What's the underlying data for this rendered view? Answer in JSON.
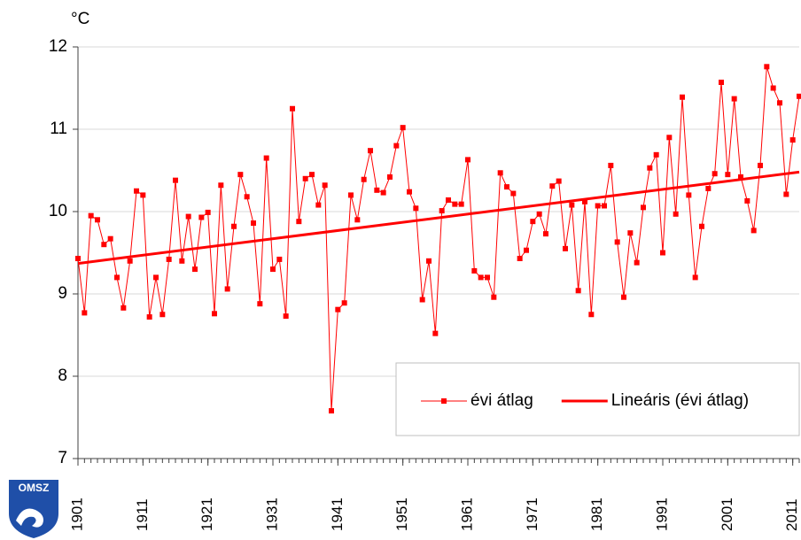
{
  "chart_data": {
    "type": "line",
    "y_label": "°C",
    "x": [
      1901,
      1902,
      1903,
      1904,
      1905,
      1906,
      1907,
      1908,
      1909,
      1910,
      1911,
      1912,
      1913,
      1914,
      1915,
      1916,
      1917,
      1918,
      1919,
      1920,
      1921,
      1922,
      1923,
      1924,
      1925,
      1926,
      1927,
      1928,
      1929,
      1930,
      1931,
      1932,
      1933,
      1934,
      1935,
      1936,
      1937,
      1938,
      1939,
      1940,
      1941,
      1942,
      1943,
      1944,
      1945,
      1946,
      1947,
      1948,
      1949,
      1950,
      1951,
      1952,
      1953,
      1954,
      1955,
      1956,
      1957,
      1958,
      1959,
      1960,
      1961,
      1962,
      1963,
      1964,
      1965,
      1966,
      1967,
      1968,
      1969,
      1970,
      1971,
      1972,
      1973,
      1974,
      1975,
      1976,
      1977,
      1978,
      1979,
      1980,
      1981,
      1982,
      1983,
      1984,
      1985,
      1986,
      1987,
      1988,
      1989,
      1990,
      1991,
      1992,
      1993,
      1994,
      1995,
      1996,
      1997,
      1998,
      1999,
      2000,
      2001,
      2002,
      2003,
      2004,
      2005,
      2006,
      2007,
      2008,
      2009,
      2010,
      2011,
      2012
    ],
    "series": [
      {
        "name": "évi átlag",
        "color": "#ff0000",
        "marker": "square",
        "values": [
          9.43,
          8.77,
          9.95,
          9.9,
          9.6,
          9.67,
          9.2,
          8.83,
          9.4,
          10.25,
          10.2,
          8.72,
          9.2,
          8.75,
          9.42,
          10.38,
          9.4,
          9.94,
          9.3,
          9.93,
          9.99,
          8.76,
          10.32,
          9.06,
          9.82,
          10.45,
          10.18,
          9.86,
          8.88,
          10.65,
          9.3,
          9.42,
          8.73,
          11.25,
          9.88,
          10.4,
          10.45,
          10.08,
          10.32,
          7.58,
          8.81,
          8.89,
          10.2,
          9.9,
          10.39,
          10.74,
          10.26,
          10.23,
          10.42,
          10.8,
          11.02,
          10.24,
          10.04,
          8.93,
          9.4,
          8.52,
          10.01,
          10.14,
          10.09,
          10.09,
          10.63,
          9.28,
          9.2,
          9.2,
          8.96,
          10.47,
          10.3,
          10.22,
          9.43,
          9.53,
          9.88,
          9.97,
          9.73,
          10.31,
          10.37,
          9.55,
          10.08,
          9.04,
          10.12,
          8.75,
          10.07,
          10.07,
          10.56,
          9.63,
          8.96,
          9.74,
          9.38,
          10.05,
          10.53,
          10.69,
          9.5,
          10.9,
          9.97,
          11.39,
          10.2,
          9.2,
          9.82,
          10.28,
          10.46,
          11.57,
          10.45,
          11.37,
          10.42,
          10.13,
          9.77,
          10.56,
          11.76,
          11.5,
          11.32,
          10.21,
          10.87,
          11.4
        ]
      },
      {
        "name": "Lineáris (évi átlag)",
        "color": "#ff0000",
        "x": [
          1901,
          2012
        ],
        "values": [
          9.37,
          10.48
        ]
      }
    ],
    "xlim": [
      1901,
      2012
    ],
    "xticks": [
      1901,
      1911,
      1921,
      1931,
      1941,
      1951,
      1961,
      1971,
      1981,
      1991,
      2001,
      2011
    ],
    "ylim": [
      7,
      12
    ],
    "yticks": [
      7,
      8,
      9,
      10,
      11,
      12
    ],
    "grid": true,
    "legend": "lower right"
  },
  "logo_text": "OMSZ"
}
